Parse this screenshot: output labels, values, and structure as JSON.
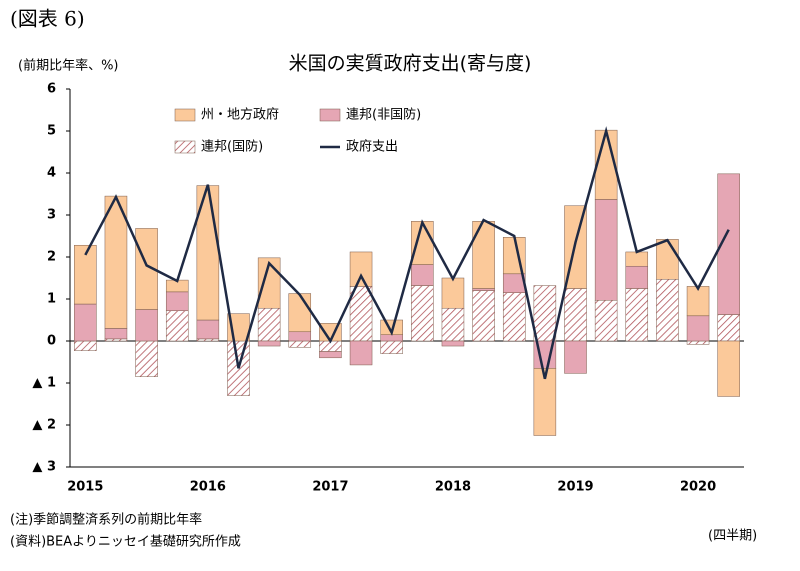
{
  "header": {
    "label": "(図表 6)"
  },
  "chart_data": {
    "type": "bar",
    "stacked": true,
    "title": "米国の実質政府支出(寄与度)",
    "y_axis_label": "(前期比年率、%)",
    "x_axis_label": "(四半期)",
    "categories": [
      "2015",
      null,
      null,
      null,
      "2016",
      null,
      null,
      null,
      "2017",
      null,
      null,
      null,
      "2018",
      null,
      null,
      null,
      "2019",
      null,
      null,
      null,
      "2020",
      null
    ],
    "series": [
      {
        "name": "州・地方政府",
        "color": "#fbc99a",
        "values": [
          1.4,
          3.15,
          1.93,
          0.28,
          3.2,
          0.65,
          1.2,
          0.91,
          0.42,
          0.82,
          0.35,
          1.03,
          0.72,
          1.6,
          0.87,
          -1.6,
          1.97,
          1.65,
          0.34,
          0.95,
          0.7,
          -1.32
        ]
      },
      {
        "name": "連邦(非国防)",
        "color": "#e5a6b4",
        "values": [
          0.88,
          0.25,
          0.75,
          0.45,
          0.45,
          0.0,
          -0.12,
          0.22,
          -0.15,
          -0.57,
          0.15,
          0.5,
          -0.12,
          0.05,
          0.45,
          -0.65,
          -0.77,
          2.4,
          0.53,
          0.0,
          0.6,
          3.35
        ]
      },
      {
        "name": "連邦(国防)",
        "color": "#b0545a",
        "hatch": true,
        "values": [
          -0.23,
          0.05,
          -0.85,
          0.72,
          0.05,
          -1.3,
          0.78,
          -0.15,
          -0.25,
          1.3,
          -0.3,
          1.32,
          0.78,
          1.2,
          1.15,
          1.32,
          1.25,
          0.97,
          1.25,
          1.47,
          -0.08,
          0.63
        ]
      },
      {
        "name": "政府支出",
        "color": "#1f2a44",
        "type": "line",
        "values": [
          2.05,
          3.43,
          1.8,
          1.43,
          3.72,
          -0.65,
          1.85,
          1.1,
          0.0,
          1.55,
          0.2,
          2.82,
          1.48,
          2.88,
          2.5,
          -0.9,
          2.35,
          5.0,
          2.12,
          2.4,
          1.25,
          2.65
        ]
      }
    ],
    "ylim": [
      -3,
      6
    ],
    "yticks": [
      {
        "value": -3,
        "label": "▲ 3"
      },
      {
        "value": -2,
        "label": "▲ 2"
      },
      {
        "value": -1,
        "label": "▲ 1"
      },
      0,
      1,
      2,
      3,
      4,
      5,
      6
    ],
    "grid": false,
    "legend": "top-left"
  },
  "notes": [
    "(注)季節調整済系列の前期比年率",
    "(資料)BEAよりニッセイ基礎研究所作成"
  ]
}
